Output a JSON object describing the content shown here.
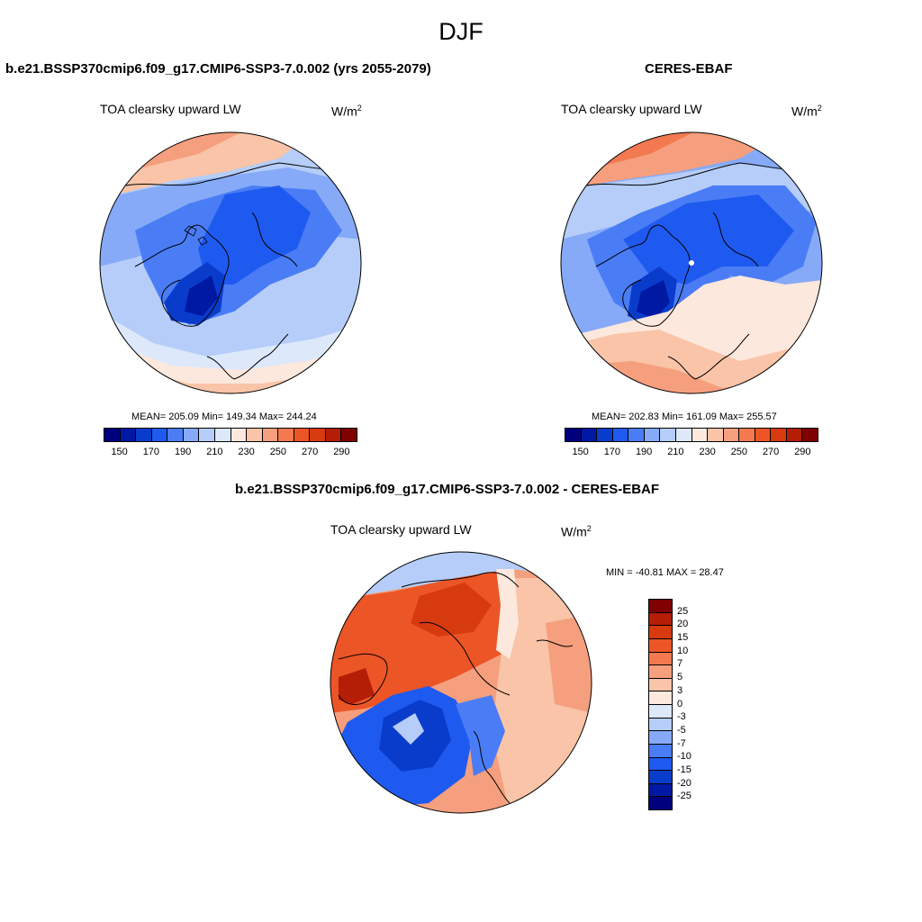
{
  "season": "DJF",
  "panels": [
    {
      "title": "b.e21.BSSP370cmip6.f09_g17.CMIP6-SSP3-7.0.002 (yrs 2055-2079)",
      "variable": "TOA clearsky upward LW",
      "units": "W/m",
      "units_sup": "2",
      "stats": "MEAN= 205.09  Min= 149.34  Max= 244.24"
    },
    {
      "title": "CERES-EBAF",
      "variable": "TOA clearsky upward LW",
      "units": "W/m",
      "units_sup": "2",
      "stats": "MEAN= 202.83  Min= 161.09  Max= 255.57"
    }
  ],
  "diff_panel": {
    "title": "b.e21.BSSP370cmip6.f09_g17.CMIP6-SSP3-7.0.002 - CERES-EBAF",
    "variable": "TOA clearsky upward LW",
    "units": "W/m",
    "units_sup": "2",
    "stats": "MIN = -40.81 MAX =  28.47"
  },
  "colorbar_main": {
    "ticks": [
      "150",
      "170",
      "190",
      "210",
      "230",
      "250",
      "270",
      "290"
    ],
    "colors": [
      "#00007f",
      "#0019a3",
      "#0a3ccc",
      "#1f5af0",
      "#4a7df5",
      "#86aaf7",
      "#b5cdf8",
      "#dde8fb",
      "#fde8dd",
      "#f9c4a8",
      "#f59f7e",
      "#f27950",
      "#ec5526",
      "#d83a10",
      "#b41d06",
      "#7f0000"
    ]
  },
  "colorbar_diff": {
    "ticks": [
      "25",
      "20",
      "15",
      "10",
      "7",
      "5",
      "3",
      "0",
      "-3",
      "-5",
      "-7",
      "-10",
      "-15",
      "-20",
      "-25"
    ],
    "colors": [
      "#7f0000",
      "#b41d06",
      "#d83a10",
      "#ec5526",
      "#f27950",
      "#f59f7e",
      "#f9c4a8",
      "#fde8dd",
      "#dde8fb",
      "#b5cdf8",
      "#86aaf7",
      "#4a7df5",
      "#1f5af0",
      "#0a3ccc",
      "#0019a3",
      "#00007f"
    ]
  }
}
